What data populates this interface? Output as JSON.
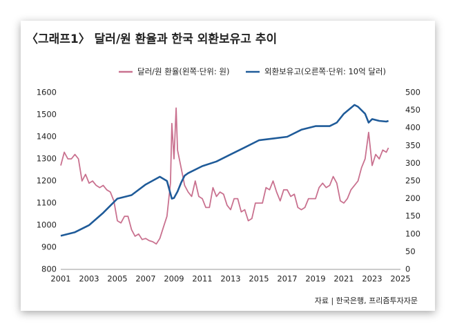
{
  "chart_data": {
    "type": "line",
    "title": "〈그래프1〉 달러/원 환율과 한국 외환보유고 추이",
    "source": "자료 | 한국은행, 프리즘투자자문",
    "xlim": [
      2001,
      2025
    ],
    "xticks": [
      2001,
      2003,
      2005,
      2007,
      2009,
      2011,
      2013,
      2015,
      2017,
      2019,
      2021,
      2023,
      2025
    ],
    "ylim": [
      800,
      1600
    ],
    "yticks": [
      800,
      900,
      1000,
      1100,
      1200,
      1300,
      1400,
      1500,
      1600
    ],
    "y2lim": [
      0,
      500
    ],
    "y2ticks": [
      0,
      50,
      100,
      150,
      200,
      250,
      300,
      350,
      400,
      450,
      500
    ],
    "series": [
      {
        "name": "달러/원 환율(왼쪽·단위: 원)",
        "color": "#c9718f",
        "x": [
          2001,
          2001.25,
          2001.5,
          2001.75,
          2002,
          2002.25,
          2002.5,
          2002.75,
          2003,
          2003.25,
          2003.5,
          2003.75,
          2004,
          2004.25,
          2004.5,
          2004.75,
          2005,
          2005.25,
          2005.5,
          2005.75,
          2006,
          2006.25,
          2006.5,
          2006.75,
          2007,
          2007.25,
          2007.5,
          2007.75,
          2008,
          2008.25,
          2008.5,
          2008.75,
          2008.85,
          2009,
          2009.15,
          2009.25,
          2009.5,
          2009.75,
          2010,
          2010.25,
          2010.5,
          2010.75,
          2011,
          2011.25,
          2011.5,
          2011.75,
          2012,
          2012.25,
          2012.5,
          2012.75,
          2013,
          2013.25,
          2013.5,
          2013.75,
          2014,
          2014.25,
          2014.5,
          2014.75,
          2015,
          2015.25,
          2015.5,
          2015.75,
          2016,
          2016.25,
          2016.5,
          2016.75,
          2017,
          2017.25,
          2017.5,
          2017.75,
          2018,
          2018.25,
          2018.5,
          2018.75,
          2019,
          2019.25,
          2019.5,
          2019.75,
          2020,
          2020.25,
          2020.5,
          2020.75,
          2021,
          2021.25,
          2021.5,
          2021.75,
          2022,
          2022.25,
          2022.5,
          2022.75,
          2023,
          2023.25,
          2023.5,
          2023.75,
          2024,
          2024.15
        ],
        "values": [
          1270,
          1330,
          1300,
          1300,
          1320,
          1300,
          1200,
          1230,
          1190,
          1200,
          1180,
          1170,
          1180,
          1160,
          1150,
          1110,
          1020,
          1010,
          1040,
          1040,
          980,
          950,
          960,
          935,
          940,
          930,
          925,
          915,
          940,
          990,
          1040,
          1190,
          1460,
          1300,
          1530,
          1340,
          1260,
          1180,
          1150,
          1130,
          1200,
          1130,
          1120,
          1080,
          1080,
          1170,
          1130,
          1150,
          1140,
          1090,
          1070,
          1120,
          1120,
          1060,
          1070,
          1020,
          1030,
          1100,
          1100,
          1100,
          1170,
          1160,
          1200,
          1150,
          1110,
          1160,
          1160,
          1130,
          1140,
          1080,
          1070,
          1080,
          1120,
          1120,
          1120,
          1170,
          1190,
          1170,
          1180,
          1220,
          1190,
          1110,
          1100,
          1120,
          1160,
          1180,
          1200,
          1260,
          1300,
          1420,
          1270,
          1320,
          1300,
          1340,
          1330,
          1350
        ]
      },
      {
        "name": "외환보유고(오른쪽·단위: 10억 달러)",
        "color": "#1f5b99",
        "axis": "y2",
        "x": [
          2001,
          2002,
          2003,
          2004,
          2005,
          2006,
          2007,
          2008,
          2008.5,
          2008.85,
          2009,
          2009.25,
          2009.5,
          2009.75,
          2010,
          2011,
          2012,
          2013,
          2014,
          2015,
          2016,
          2017,
          2018,
          2019,
          2020,
          2020.5,
          2021,
          2021.75,
          2022,
          2022.5,
          2022.75,
          2023,
          2023.5,
          2024,
          2024.15
        ],
        "values": [
          95,
          105,
          125,
          160,
          200,
          210,
          240,
          262,
          250,
          200,
          202,
          220,
          245,
          265,
          272,
          292,
          305,
          325,
          345,
          365,
          370,
          375,
          395,
          405,
          405,
          415,
          440,
          465,
          460,
          440,
          415,
          425,
          420,
          418,
          420
        ]
      }
    ]
  }
}
